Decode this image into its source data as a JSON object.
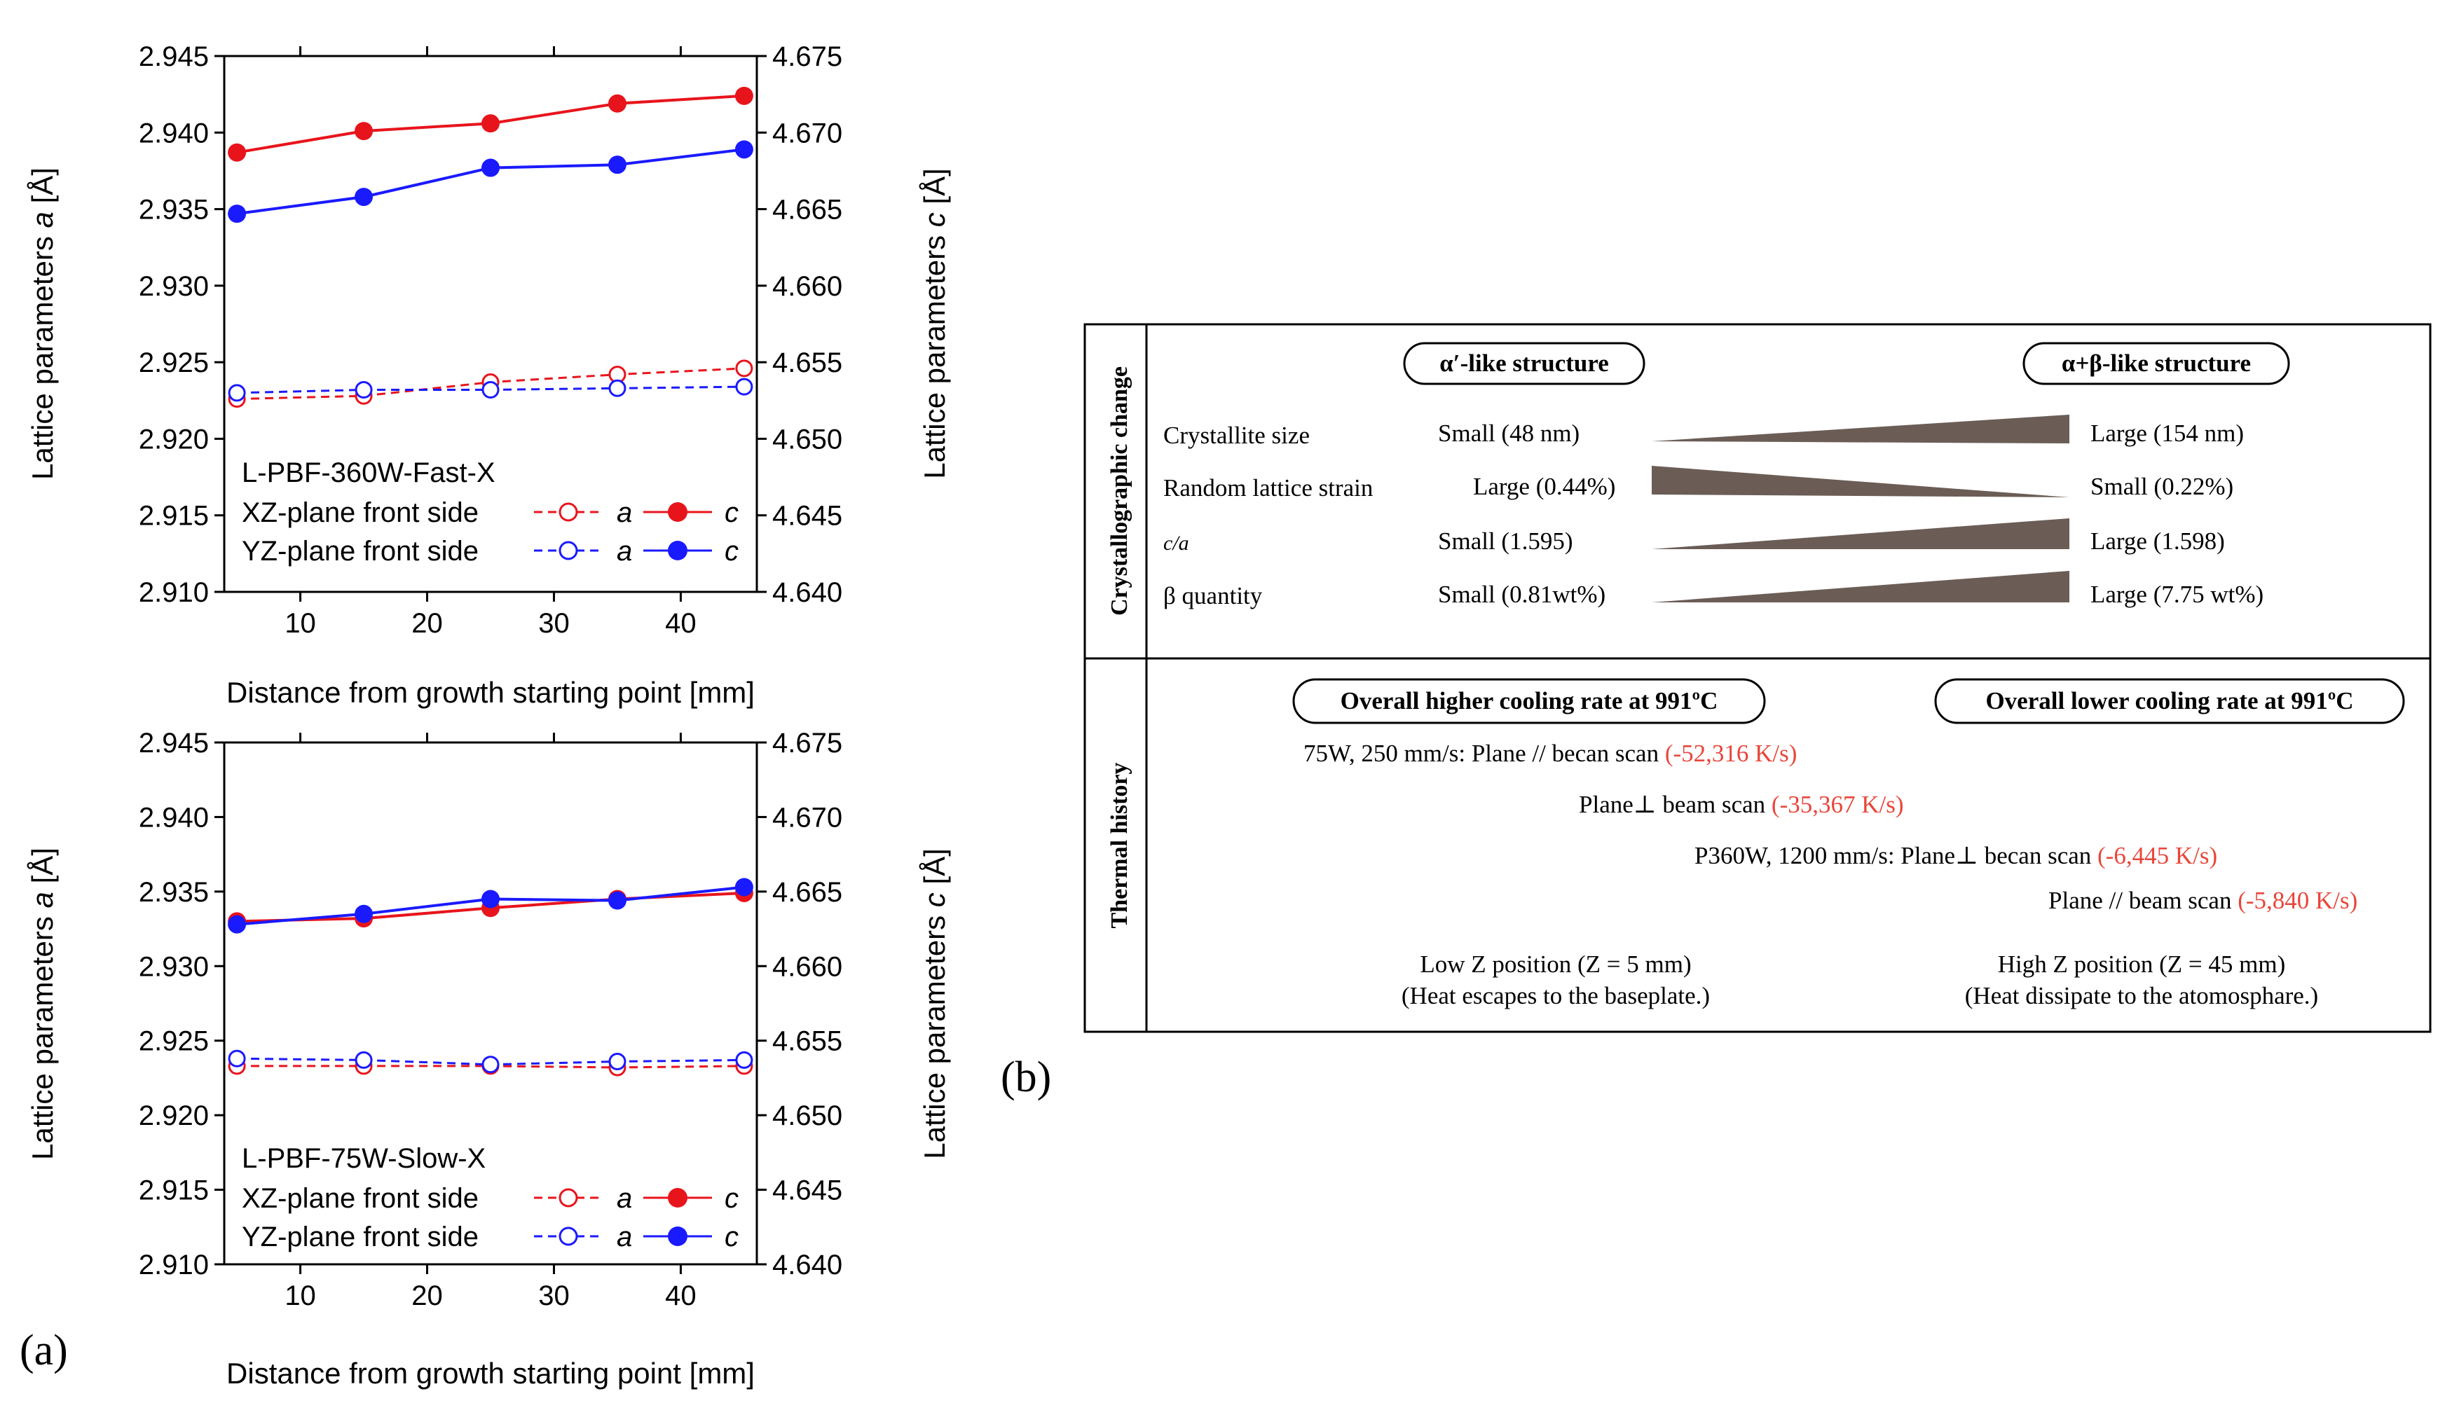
{
  "panel_a_label": "(a)",
  "panel_b_label": "(b)",
  "chart_data": [
    {
      "type": "line",
      "panel": "a-top",
      "title": "L-PBF-360W-Fast-X",
      "xlabel": "Distance from growth starting point [mm]",
      "ylabel_left_prefix": "Lattice parameters",
      "ylabel_left_var": "a",
      "ylabel_right_prefix": "Lattice parameters",
      "ylabel_right_var": "c",
      "ylabel_unit": "[Å]",
      "x": [
        5,
        15,
        25,
        35,
        45
      ],
      "xlim": [
        4,
        46
      ],
      "xticks": [
        "10",
        "20",
        "30",
        "40"
      ],
      "xtick_values": [
        10,
        20,
        30,
        40
      ],
      "ylim_left": [
        2.91,
        2.945
      ],
      "ylim_right": [
        4.64,
        4.675
      ],
      "yticks_left": [
        "2.910",
        "2.915",
        "2.920",
        "2.925",
        "2.930",
        "2.935",
        "2.940",
        "2.945"
      ],
      "yticks_right": [
        "4.640",
        "4.645",
        "4.650",
        "4.655",
        "4.660",
        "4.665",
        "4.670",
        "4.675"
      ],
      "legend_rows": [
        "XZ-plane front side",
        "YZ-plane front side"
      ],
      "legend_a": "a",
      "legend_c": "c",
      "series": [
        {
          "name": "XZ-plane front side a",
          "axis": "left",
          "style": "dashed-open",
          "color": "#e8141c",
          "values": [
            2.9226,
            2.9228,
            2.9237,
            2.9242,
            2.9246
          ]
        },
        {
          "name": "XZ-plane front side c",
          "axis": "right",
          "style": "solid-filled",
          "color": "#e8141c",
          "values": [
            4.6687,
            4.6701,
            4.6706,
            4.6719,
            4.6724
          ]
        },
        {
          "name": "YZ-plane front side a",
          "axis": "left",
          "style": "dashed-open",
          "color": "#1a1aff",
          "values": [
            2.923,
            2.9232,
            2.9232,
            2.9233,
            2.9234
          ]
        },
        {
          "name": "YZ-plane front side c",
          "axis": "right",
          "style": "solid-filled",
          "color": "#1a1aff",
          "values": [
            4.6647,
            4.6658,
            4.6677,
            4.6679,
            4.6689
          ]
        }
      ]
    },
    {
      "type": "line",
      "panel": "a-bottom",
      "title": "L-PBF-75W-Slow-X",
      "xlabel": "Distance from growth starting point [mm]",
      "ylabel_left_prefix": "Lattice parameters",
      "ylabel_left_var": "a",
      "ylabel_right_prefix": "Lattice parameters",
      "ylabel_right_var": "c",
      "ylabel_unit": "[Å]",
      "x": [
        5,
        15,
        25,
        35,
        45
      ],
      "xlim": [
        4,
        46
      ],
      "xticks": [
        "10",
        "20",
        "30",
        "40"
      ],
      "xtick_values": [
        10,
        20,
        30,
        40
      ],
      "ylim_left": [
        2.91,
        2.945
      ],
      "ylim_right": [
        4.64,
        4.675
      ],
      "yticks_left": [
        "2.910",
        "2.915",
        "2.920",
        "2.925",
        "2.930",
        "2.935",
        "2.940",
        "2.945"
      ],
      "yticks_right": [
        "4.640",
        "4.645",
        "4.650",
        "4.655",
        "4.660",
        "4.665",
        "4.670",
        "4.675"
      ],
      "legend_rows": [
        "XZ-plane front side",
        "YZ-plane front side"
      ],
      "legend_a": "a",
      "legend_c": "c",
      "series": [
        {
          "name": "XZ-plane front side a",
          "axis": "left",
          "style": "dashed-open",
          "color": "#e8141c",
          "values": [
            2.9233,
            2.9233,
            2.9233,
            2.9232,
            2.9233
          ]
        },
        {
          "name": "XZ-plane front side c",
          "axis": "right",
          "style": "solid-filled",
          "color": "#e8141c",
          "values": [
            4.663,
            4.6632,
            4.6639,
            4.6645,
            4.6649
          ]
        },
        {
          "name": "YZ-plane front side a",
          "axis": "left",
          "style": "dashed-open",
          "color": "#1a1aff",
          "values": [
            2.9238,
            2.9237,
            2.9234,
            2.9236,
            2.9237
          ]
        },
        {
          "name": "YZ-plane front side c",
          "axis": "right",
          "style": "solid-filled",
          "color": "#1a1aff",
          "values": [
            4.6628,
            4.6635,
            4.6645,
            4.6644,
            4.6653
          ]
        }
      ]
    }
  ],
  "table_b": {
    "section1_label": "Crystallographic change",
    "section2_label": "Thermal history",
    "header_left": "α′-like structure",
    "header_right": "α+β-like structure",
    "rows": [
      {
        "label": "Crystallite size",
        "left": "Small (48 nm)",
        "right": "Large (154 nm)",
        "wedge": "increasing"
      },
      {
        "label": "Random lattice strain",
        "left": "Large (0.44%)",
        "right": "Small (0.22%)",
        "wedge": "decreasing"
      },
      {
        "label": "c/a",
        "left": "Small (1.595)",
        "right": "Large (1.598)",
        "wedge": "increasing"
      },
      {
        "label": "β quantity",
        "left": "Small (0.81wt%)",
        "right": "Large (7.75 wt%)",
        "wedge": "increasing"
      }
    ],
    "thermal_header_left": "Overall higher cooling rate at 991ºC",
    "thermal_header_right": "Overall lower cooling rate at 991ºC",
    "thermal_lines": [
      {
        "text": "75W, 250 mm/s: Plane // becan scan ",
        "rate": "(-52,316 K/s)"
      },
      {
        "text": "Plane⊥ beam scan ",
        "rate": "(-35,367 K/s)"
      },
      {
        "text": "P360W, 1200 mm/s: Plane⊥ becan scan ",
        "rate": "(-6,445 K/s)"
      },
      {
        "text": "Plane // beam scan ",
        "rate": "(-5,840 K/s)"
      }
    ],
    "z_left_title": "Low Z position (Z = 5 mm)",
    "z_left_note": "(Heat escapes to the baseplate.)",
    "z_right_title": "High Z position (Z = 45 mm)",
    "z_right_note": "(Heat dissipate to the atomosphare.)",
    "rate_color": "#e8463a",
    "wedge_color": "#6b5d56"
  }
}
